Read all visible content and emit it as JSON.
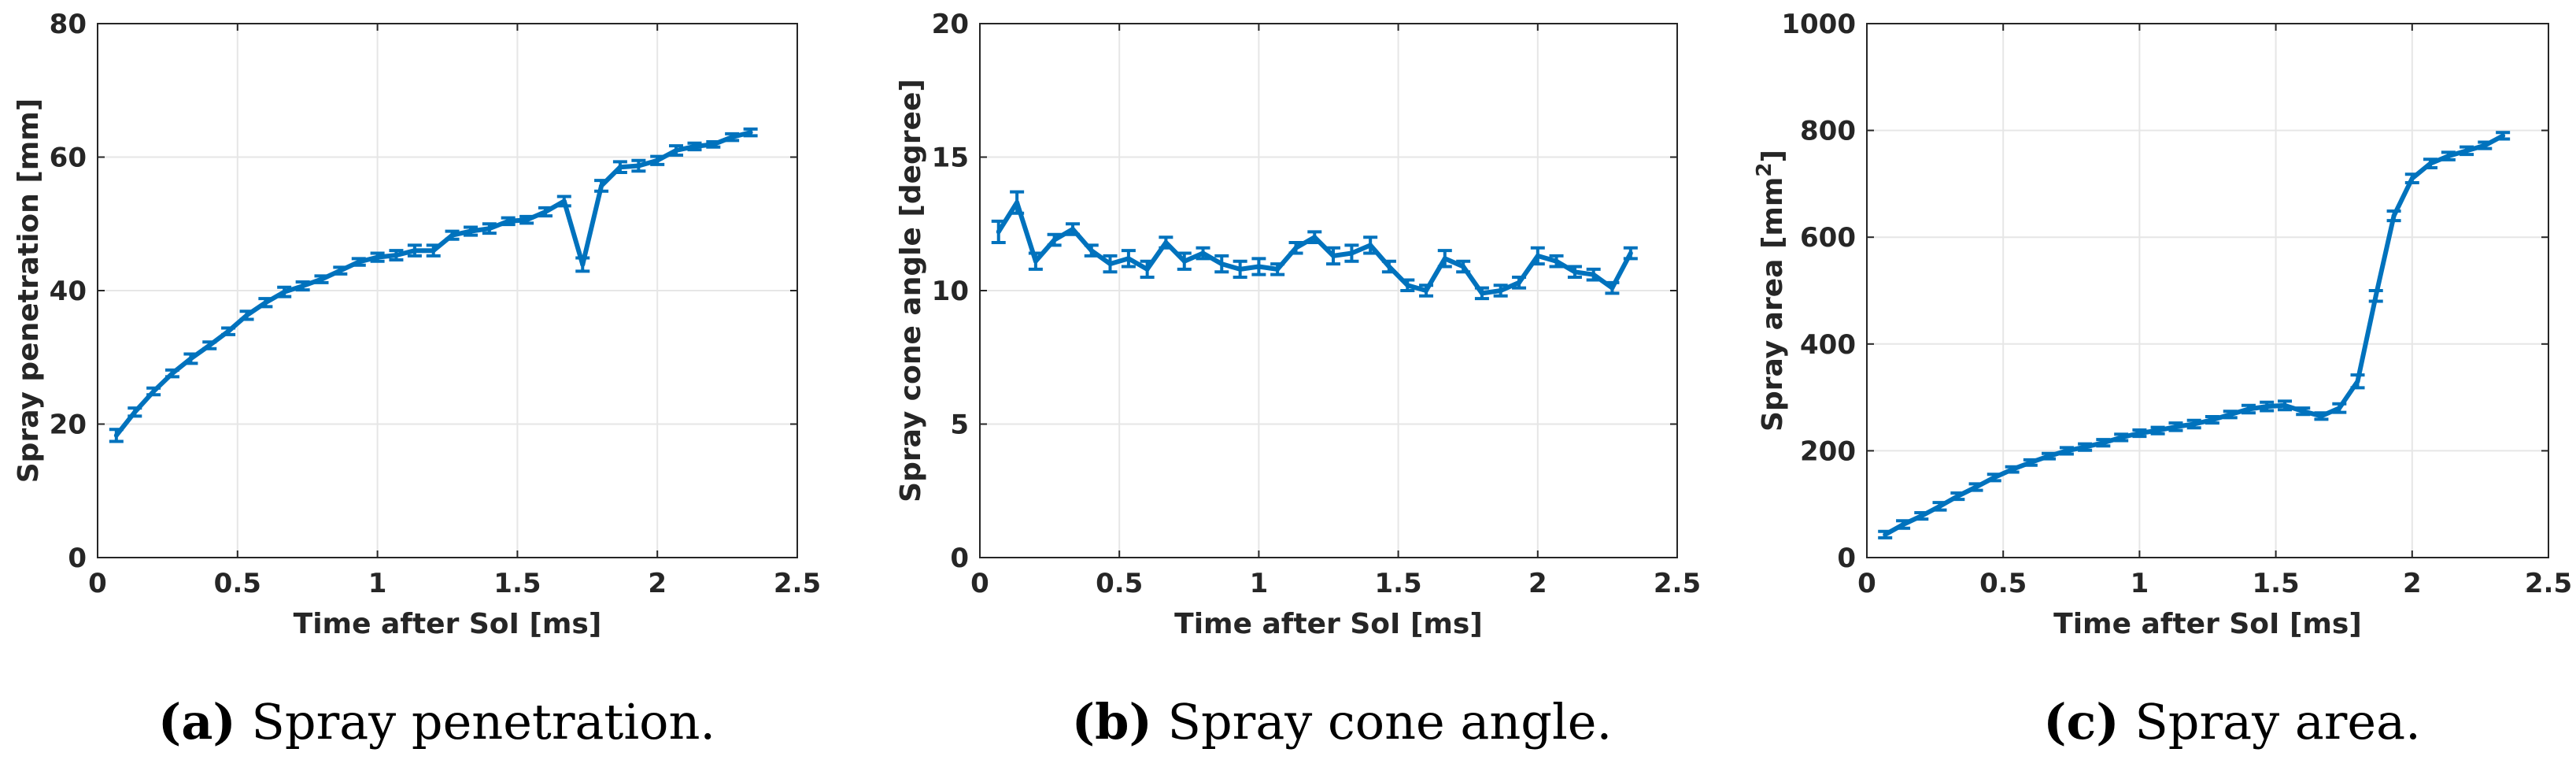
{
  "figure": {
    "colors": {
      "series": "#0072BD",
      "axis": "#262626",
      "grid": "#e6e6e6"
    }
  },
  "chart_data": [
    {
      "type": "line",
      "id": "a",
      "caption_tag": "(a)",
      "caption_text": "Spray penetration.",
      "xlabel": "Time after SoI [ms]",
      "ylabel": "Spray penetration [mm]",
      "ylabel_sup": "",
      "ylabel_post": "",
      "xlim": [
        0,
        2.5
      ],
      "ylim": [
        0,
        80
      ],
      "xticks": [
        0,
        0.5,
        1,
        1.5,
        2,
        2.5
      ],
      "xtick_labels": [
        "0",
        "0.5",
        "1",
        "1.5",
        "2",
        "2.5"
      ],
      "yticks": [
        0,
        20,
        40,
        60,
        80
      ],
      "ytick_labels": [
        "0",
        "20",
        "40",
        "60",
        "80"
      ],
      "grid": true,
      "x": [
        0.067,
        0.133,
        0.2,
        0.267,
        0.333,
        0.4,
        0.467,
        0.533,
        0.6,
        0.667,
        0.733,
        0.8,
        0.867,
        0.933,
        1.0,
        1.067,
        1.133,
        1.2,
        1.267,
        1.333,
        1.4,
        1.467,
        1.533,
        1.6,
        1.667,
        1.733,
        1.8,
        1.867,
        1.933,
        2.0,
        2.067,
        2.133,
        2.2,
        2.267,
        2.333
      ],
      "y": [
        18.3,
        21.8,
        24.9,
        27.6,
        29.8,
        31.8,
        33.9,
        36.3,
        38.2,
        39.8,
        40.7,
        41.7,
        43.0,
        44.3,
        45.0,
        45.3,
        46.0,
        46.0,
        48.3,
        48.9,
        49.3,
        50.4,
        50.6,
        51.8,
        53.4,
        43.9,
        55.7,
        58.5,
        58.7,
        59.5,
        61.0,
        61.6,
        61.9,
        63.0,
        63.7
      ],
      "err": [
        0.9,
        0.6,
        0.5,
        0.5,
        0.7,
        0.5,
        0.5,
        0.6,
        0.6,
        0.7,
        0.6,
        0.5,
        0.5,
        0.5,
        0.6,
        0.7,
        0.8,
        0.8,
        0.6,
        0.6,
        0.7,
        0.5,
        0.5,
        0.6,
        0.7,
        1.0,
        0.8,
        0.8,
        0.8,
        0.6,
        0.7,
        0.5,
        0.4,
        0.5,
        0.5
      ]
    },
    {
      "type": "line",
      "id": "b",
      "caption_tag": "(b)",
      "caption_text": "Spray cone angle.",
      "xlabel": "Time after SoI [ms]",
      "ylabel": "Spray cone angle [degree]",
      "ylabel_sup": "",
      "ylabel_post": "",
      "xlim": [
        0,
        2.5
      ],
      "ylim": [
        0,
        20
      ],
      "xticks": [
        0,
        0.5,
        1,
        1.5,
        2,
        2.5
      ],
      "xtick_labels": [
        "0",
        "0.5",
        "1",
        "1.5",
        "2",
        "2.5"
      ],
      "yticks": [
        0,
        5,
        10,
        15,
        20
      ],
      "ytick_labels": [
        "0",
        "5",
        "10",
        "15",
        "20"
      ],
      "grid": true,
      "x": [
        0.067,
        0.133,
        0.2,
        0.267,
        0.333,
        0.4,
        0.467,
        0.533,
        0.6,
        0.667,
        0.733,
        0.8,
        0.867,
        0.933,
        1.0,
        1.067,
        1.133,
        1.2,
        1.267,
        1.333,
        1.4,
        1.467,
        1.533,
        1.6,
        1.667,
        1.733,
        1.8,
        1.867,
        1.933,
        2.0,
        2.067,
        2.133,
        2.2,
        2.267,
        2.333
      ],
      "y": [
        12.2,
        13.3,
        11.1,
        11.9,
        12.3,
        11.5,
        11.0,
        11.2,
        10.8,
        11.8,
        11.1,
        11.4,
        11.0,
        10.8,
        10.9,
        10.8,
        11.6,
        12.0,
        11.3,
        11.4,
        11.7,
        10.9,
        10.2,
        10.0,
        11.2,
        10.9,
        9.9,
        10.0,
        10.3,
        11.3,
        11.1,
        10.7,
        10.6,
        10.1,
        11.4
      ],
      "err": [
        0.4,
        0.4,
        0.3,
        0.2,
        0.2,
        0.2,
        0.3,
        0.3,
        0.3,
        0.2,
        0.3,
        0.2,
        0.3,
        0.3,
        0.3,
        0.2,
        0.2,
        0.2,
        0.3,
        0.3,
        0.3,
        0.2,
        0.2,
        0.2,
        0.3,
        0.2,
        0.2,
        0.2,
        0.2,
        0.3,
        0.2,
        0.2,
        0.2,
        0.2,
        0.2
      ]
    },
    {
      "type": "line",
      "id": "c",
      "caption_tag": "(c)",
      "caption_text": "Spray area.",
      "xlabel": "Time after SoI [ms]",
      "ylabel": "Spray area [mm",
      "ylabel_sup": "2",
      "ylabel_post": "]",
      "xlim": [
        0,
        2.5
      ],
      "ylim": [
        0,
        1000
      ],
      "xticks": [
        0,
        0.5,
        1,
        1.5,
        2,
        2.5
      ],
      "xtick_labels": [
        "0",
        "0.5",
        "1",
        "1.5",
        "2",
        "2.5"
      ],
      "yticks": [
        0,
        200,
        400,
        600,
        800,
        1000
      ],
      "ytick_labels": [
        "0",
        "200",
        "400",
        "600",
        "800",
        "1000"
      ],
      "grid": true,
      "x": [
        0.067,
        0.133,
        0.2,
        0.267,
        0.333,
        0.4,
        0.467,
        0.533,
        0.6,
        0.667,
        0.733,
        0.8,
        0.867,
        0.933,
        1.0,
        1.067,
        1.133,
        1.2,
        1.267,
        1.333,
        1.4,
        1.467,
        1.533,
        1.6,
        1.667,
        1.733,
        1.8,
        1.867,
        1.933,
        2.0,
        2.067,
        2.133,
        2.2,
        2.267,
        2.333
      ],
      "y": [
        43,
        62,
        78,
        96,
        115,
        132,
        150,
        165,
        178,
        190,
        200,
        207,
        215,
        225,
        233,
        238,
        245,
        250,
        258,
        268,
        278,
        283,
        285,
        274,
        265,
        280,
        330,
        490,
        640,
        710,
        738,
        752,
        762,
        772,
        790
      ],
      "err": [
        6,
        7,
        6,
        7,
        6,
        6,
        6,
        5,
        5,
        5,
        6,
        6,
        6,
        6,
        6,
        6,
        7,
        7,
        6,
        6,
        7,
        8,
        8,
        6,
        6,
        8,
        12,
        10,
        9,
        8,
        8,
        7,
        7,
        6,
        6
      ]
    }
  ]
}
